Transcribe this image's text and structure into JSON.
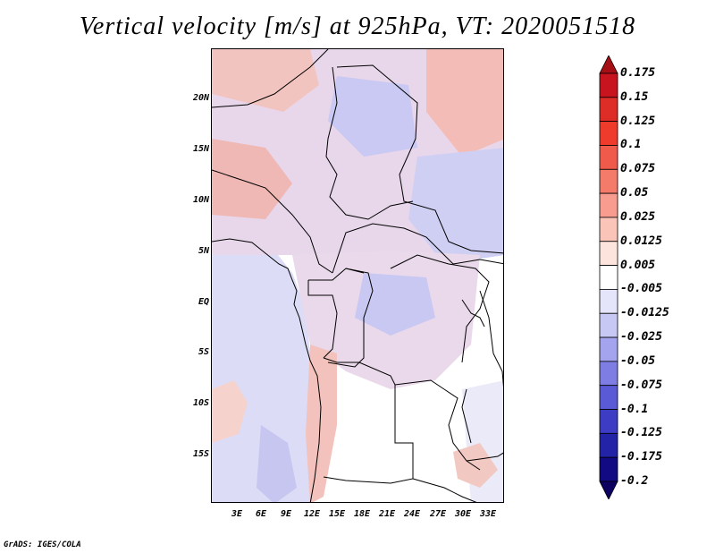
{
  "title": "Vertical velocity [m/s] at 925hPa, VT: 2020051518",
  "footer": "GrADS: IGES/COLA",
  "map": {
    "y_axis_labels": [
      "20N",
      "15N",
      "10N",
      "5N",
      "EQ",
      "5S",
      "10S",
      "15S"
    ],
    "x_axis_labels": [
      "3E",
      "6E",
      "9E",
      "12E",
      "15E",
      "18E",
      "21E",
      "24E",
      "27E",
      "30E",
      "33E"
    ]
  },
  "colorbar": {
    "labels": [
      "0.175",
      "0.15",
      "0.125",
      "0.1",
      "0.075",
      "0.05",
      "0.025",
      "0.0125",
      "0.005",
      "-0.005",
      "-0.0125",
      "-0.025",
      "-0.05",
      "-0.075",
      "-0.1",
      "-0.125",
      "-0.175",
      "-0.2"
    ],
    "colors": [
      "#a50f15",
      "#c8141e",
      "#de2d26",
      "#ef3b2c",
      "#f05a4a",
      "#f47a6a",
      "#f79c8e",
      "#fbc4b8",
      "#fde4dc",
      "#ffffff",
      "#e4e4fb",
      "#c8c8f5",
      "#a3a3ee",
      "#7d7de3",
      "#5a5ad6",
      "#3c3cc4",
      "#2323a8",
      "#120a82",
      "#0c0060"
    ]
  }
}
